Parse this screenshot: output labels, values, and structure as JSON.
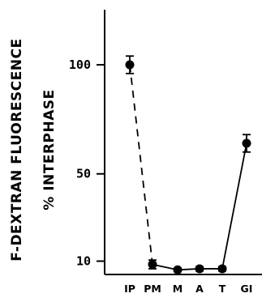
{
  "chart_data": {
    "type": "line",
    "title": "",
    "xlabel": "",
    "ylabel": [
      "F-DEXTRAN FLUORESCENCE",
      "% INTERPHASE"
    ],
    "categories": [
      "IP",
      "PM",
      "M",
      "A",
      "T",
      "GI"
    ],
    "yticks": [
      10,
      50,
      100
    ],
    "ylim": [
      5,
      110
    ],
    "grid": false,
    "legend": "none",
    "series": [
      {
        "values": [
          100,
          8.5,
          6,
          6.5,
          6.5,
          64
        ],
        "errors": [
          4,
          2,
          0.8,
          1,
          1,
          4
        ],
        "dashed_segments": [
          0
        ]
      }
    ],
    "colors": {
      "ink": "#000000"
    }
  }
}
